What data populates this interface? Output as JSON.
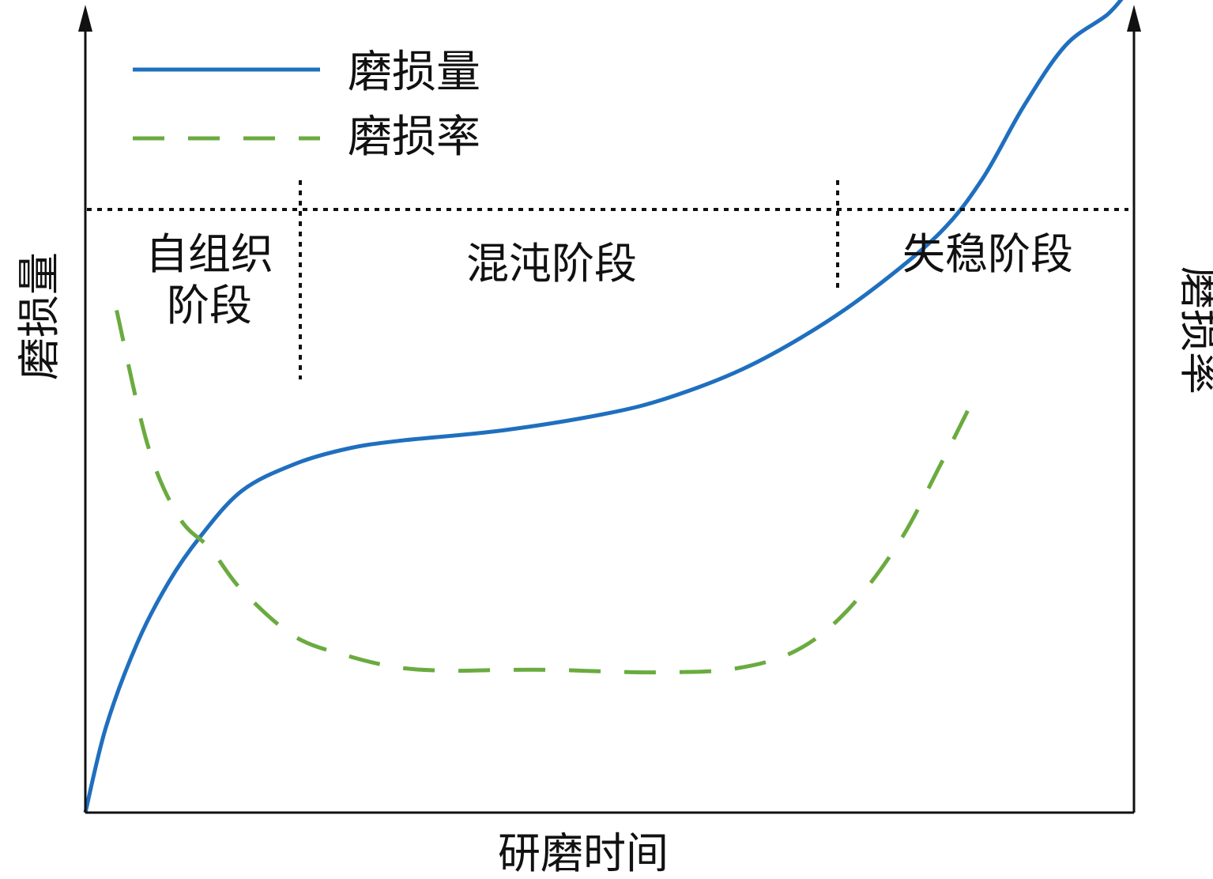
{
  "chart_data": {
    "type": "line",
    "title": "",
    "xlabel": "研磨时间",
    "ylabel_left": "磨损量",
    "ylabel_right": "磨损率",
    "ticks": "none",
    "legend": {
      "placement": "top-left",
      "entries": [
        {
          "name": "磨损量",
          "style": "solid",
          "color": "#1f6fbf"
        },
        {
          "name": "磨损率",
          "style": "dashed",
          "color": "#6aab3f"
        }
      ]
    },
    "stages": [
      {
        "label_lines": [
          "自组织",
          "阶段"
        ]
      },
      {
        "label_lines": [
          "混沌阶段"
        ]
      },
      {
        "label_lines": [
          "失稳阶段"
        ]
      }
    ],
    "stage_boundaries_x": [
      0.206,
      0.72
    ],
    "xlim": [
      0,
      1
    ],
    "ylim": [
      0,
      1
    ],
    "series": [
      {
        "name": "磨损量",
        "axis": "left",
        "color": "#1f6fbf",
        "points": [
          [
            0.0,
            0.0
          ],
          [
            0.02,
            0.107
          ],
          [
            0.05,
            0.211
          ],
          [
            0.08,
            0.286
          ],
          [
            0.11,
            0.342
          ],
          [
            0.15,
            0.399
          ],
          [
            0.2,
            0.432
          ],
          [
            0.25,
            0.451
          ],
          [
            0.3,
            0.461
          ],
          [
            0.4,
            0.474
          ],
          [
            0.5,
            0.495
          ],
          [
            0.56,
            0.515
          ],
          [
            0.63,
            0.55
          ],
          [
            0.7,
            0.6
          ],
          [
            0.76,
            0.654
          ],
          [
            0.82,
            0.72
          ],
          [
            0.86,
            0.786
          ],
          [
            0.9,
            0.877
          ],
          [
            0.94,
            0.952
          ],
          [
            0.98,
            0.99
          ],
          [
            1.0,
            1.02
          ]
        ]
      },
      {
        "name": "磨损率",
        "axis": "right",
        "color": "#6aab3f",
        "points": [
          [
            0.03,
            0.623
          ],
          [
            0.06,
            0.455
          ],
          [
            0.09,
            0.366
          ],
          [
            0.12,
            0.327
          ],
          [
            0.15,
            0.276
          ],
          [
            0.2,
            0.219
          ],
          [
            0.25,
            0.195
          ],
          [
            0.3,
            0.18
          ],
          [
            0.35,
            0.176
          ],
          [
            0.4,
            0.177
          ],
          [
            0.45,
            0.177
          ],
          [
            0.5,
            0.175
          ],
          [
            0.55,
            0.174
          ],
          [
            0.62,
            0.178
          ],
          [
            0.68,
            0.2
          ],
          [
            0.73,
            0.25
          ],
          [
            0.78,
            0.335
          ],
          [
            0.82,
            0.432
          ],
          [
            0.85,
            0.509
          ]
        ]
      }
    ]
  }
}
